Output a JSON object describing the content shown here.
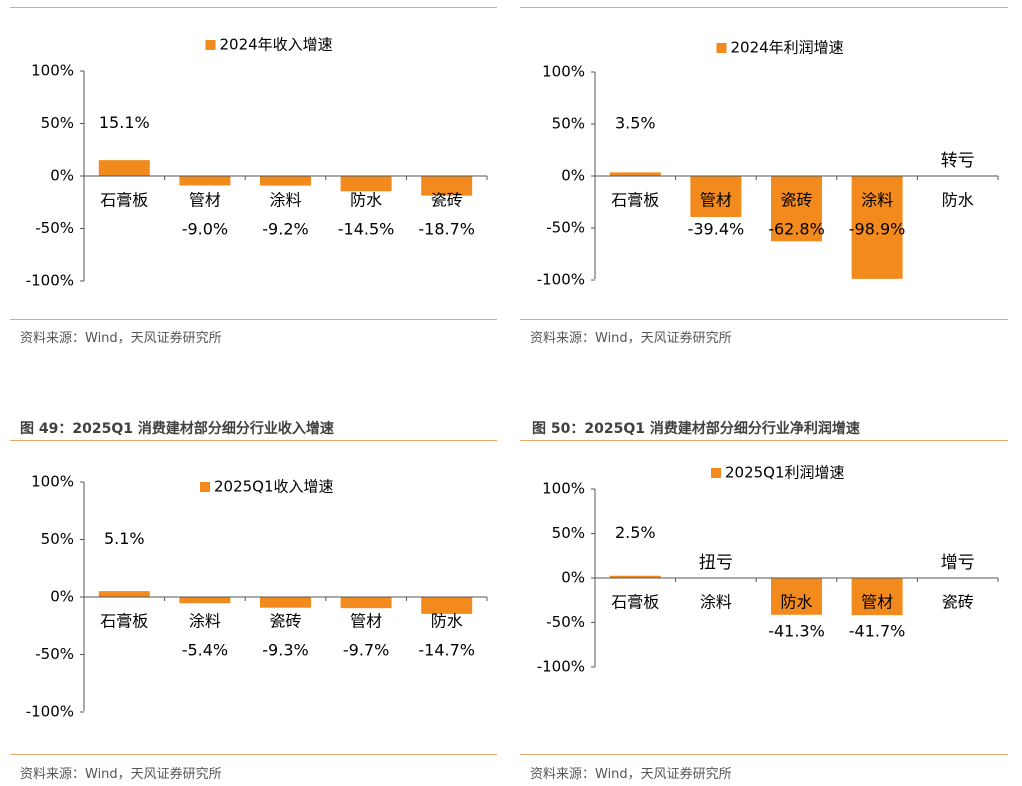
{
  "source_text": "资料来源：Wind，天风证券研究所",
  "figures": [
    {
      "title": ""
    },
    {
      "title": ""
    },
    {
      "title": "图 49：2025Q1 消费建材部分细分行业收入增速"
    },
    {
      "title": "图 50：2025Q1 消费建材部分细分行业净利润增速"
    }
  ],
  "colors": {
    "bar": "#f28a1e",
    "rule": "#e8a86a",
    "axis": "#555555"
  },
  "chart_data": [
    {
      "type": "bar",
      "legend": "2024年收入增速",
      "categories": [
        "石膏板",
        "管材",
        "涂料",
        "防水",
        "瓷砖"
      ],
      "values": [
        15.1,
        -9.0,
        -9.2,
        -14.5,
        -18.7
      ],
      "labels": [
        "15.1%",
        "-9.0%",
        "-9.2%",
        "-14.5%",
        "-18.7%"
      ],
      "special": [],
      "yticks": [
        "100%",
        "50%",
        "0%",
        "-50%",
        "-100%"
      ],
      "ylim": [
        -100,
        100
      ],
      "display": "bar lengths saturated at ±100%"
    },
    {
      "type": "bar",
      "legend": "2024年利润增速",
      "categories": [
        "石膏板",
        "管材",
        "瓷砖",
        "涂料",
        "防水"
      ],
      "values": [
        3.5,
        -39.4,
        -62.8,
        -98.9,
        null
      ],
      "labels": [
        "3.5%",
        "-39.4%",
        "-62.8%",
        "-98.9%",
        ""
      ],
      "special": [
        {
          "index": 4,
          "text": "转亏"
        }
      ],
      "yticks": [
        "100%",
        "50%",
        "0%",
        "-50%",
        "-100%"
      ],
      "ylim": [
        -100,
        100
      ],
      "display": "bar lengths saturated at ±100%"
    },
    {
      "type": "bar",
      "legend": "2025Q1收入增速",
      "categories": [
        "石膏板",
        "涂料",
        "瓷砖",
        "管材",
        "防水"
      ],
      "values": [
        5.1,
        -5.4,
        -9.3,
        -9.7,
        -14.7
      ],
      "labels": [
        "5.1%",
        "-5.4%",
        "-9.3%",
        "-9.7%",
        "-14.7%"
      ],
      "special": [],
      "yticks": [
        "100%",
        "50%",
        "0%",
        "-50%",
        "-100%"
      ],
      "ylim": [
        -100,
        100
      ],
      "display": "bar lengths saturated at ±100%"
    },
    {
      "type": "bar",
      "legend": "2025Q1利润增速",
      "categories": [
        "石膏板",
        "涂料",
        "防水",
        "管材",
        "瓷砖"
      ],
      "values": [
        2.5,
        null,
        -41.3,
        -41.7,
        null
      ],
      "labels": [
        "2.5%",
        "",
        "-41.3%",
        "-41.7%",
        ""
      ],
      "special": [
        {
          "index": 1,
          "text": "扭亏"
        },
        {
          "index": 4,
          "text": "增亏"
        }
      ],
      "yticks": [
        "100%",
        "50%",
        "0%",
        "-50%",
        "-100%"
      ],
      "ylim": [
        -100,
        100
      ],
      "display": "bar lengths saturated at ±100%"
    }
  ]
}
